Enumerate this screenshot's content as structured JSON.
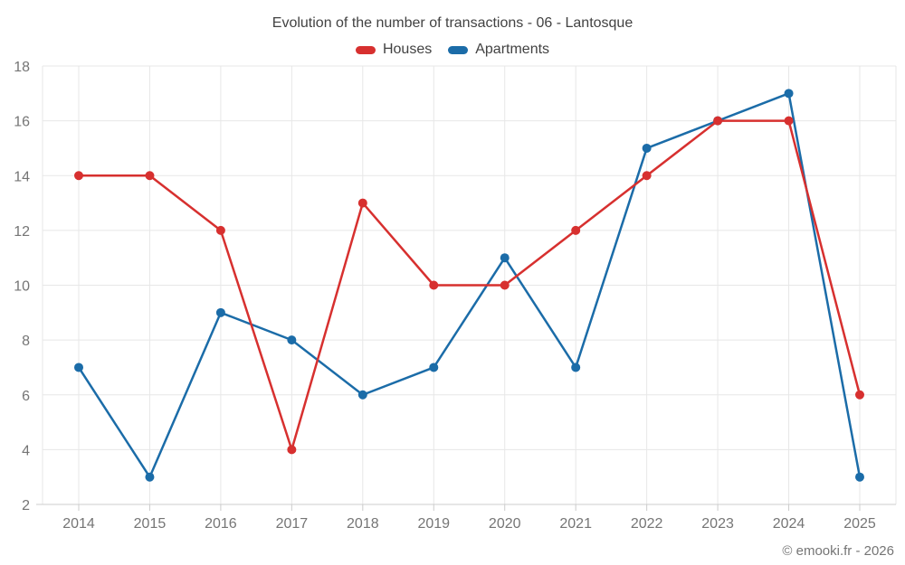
{
  "header": {
    "title": "Evolution of the number of transactions - 06 - Lantosque"
  },
  "legend": {
    "items": [
      {
        "label": "Houses",
        "color": "#d7302f"
      },
      {
        "label": "Apartments",
        "color": "#1b6ca8"
      }
    ]
  },
  "footer": {
    "copyright": "© emooki.fr - 2026"
  },
  "colors": {
    "grid": "#e7e7e7",
    "axis": "#cccccc",
    "tick_label": "#757575",
    "title_text": "#424242",
    "background": "#ffffff"
  },
  "chart_data": {
    "type": "line",
    "title": "Evolution of the number of transactions - 06 - Lantosque",
    "categories": [
      "2014",
      "2015",
      "2016",
      "2017",
      "2018",
      "2019",
      "2020",
      "2021",
      "2022",
      "2023",
      "2024",
      "2025"
    ],
    "series": [
      {
        "name": "Houses",
        "color": "#d7302f",
        "values": [
          14,
          14,
          12,
          4,
          13,
          10,
          10,
          12,
          14,
          16,
          16,
          6
        ]
      },
      {
        "name": "Apartments",
        "color": "#1b6ca8",
        "values": [
          7,
          3,
          9,
          8,
          6,
          7,
          11,
          7,
          15,
          16,
          17,
          3
        ]
      }
    ],
    "xlabel": "",
    "ylabel": "",
    "ylim": [
      2,
      18
    ],
    "yticks": [
      2,
      4,
      6,
      8,
      10,
      12,
      14,
      16,
      18
    ],
    "grid": true,
    "legend_position": "top",
    "marker": "circle"
  }
}
